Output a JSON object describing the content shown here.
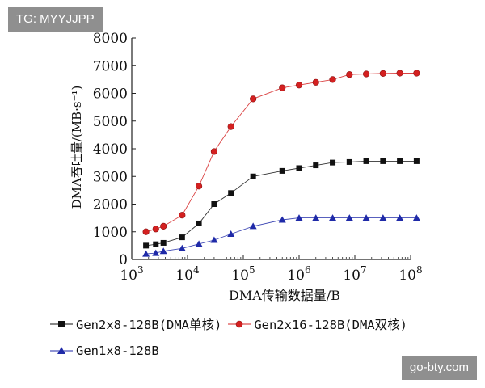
{
  "watermarks": {
    "top": "TG: MYYJJPP",
    "bottom": "go-bty.com"
  },
  "chart_data": {
    "type": "line",
    "title": "",
    "xlabel": "DMA传输数据量/B",
    "ylabel": "DMA吞吐量/(MB·s⁻¹)",
    "x_scale": "log",
    "xlim": [
      1000,
      100000000
    ],
    "ylim": [
      0,
      8000
    ],
    "x_ticks": [
      {
        "value": 1000,
        "base": "10",
        "exp": "3"
      },
      {
        "value": 10000,
        "base": "10",
        "exp": "4"
      },
      {
        "value": 100000,
        "base": "10",
        "exp": "5"
      },
      {
        "value": 1000000,
        "base": "10",
        "exp": "6"
      },
      {
        "value": 10000000,
        "base": "10",
        "exp": "7"
      },
      {
        "value": 100000000,
        "base": "10",
        "exp": "8"
      }
    ],
    "y_ticks": [
      0,
      1000,
      2000,
      3000,
      4000,
      5000,
      6000,
      7000,
      8000
    ],
    "x": [
      1800,
      2700,
      3700,
      8000,
      16000,
      30000,
      60000,
      150000,
      500000,
      1000000,
      2000000,
      4000000,
      8000000,
      16000000,
      32000000,
      64000000,
      128000000
    ],
    "series": [
      {
        "name": "Gen2x8-128B(DMA单核)",
        "color": "#111111",
        "marker": "square",
        "values": [
          500,
          550,
          600,
          800,
          1300,
          2000,
          2400,
          3000,
          3200,
          3300,
          3400,
          3500,
          3520,
          3550,
          3550,
          3550,
          3550
        ]
      },
      {
        "name": "Gen2x16-128B(DMA双核)",
        "color": "#d42020",
        "marker": "circle",
        "values": [
          1000,
          1100,
          1200,
          1600,
          2650,
          3900,
          4800,
          5800,
          6200,
          6300,
          6400,
          6500,
          6680,
          6700,
          6720,
          6730,
          6730
        ]
      },
      {
        "name": "Gen1x8-128B",
        "color": "#1f2aa8",
        "marker": "triangle",
        "values": [
          200,
          230,
          300,
          400,
          560,
          700,
          920,
          1200,
          1430,
          1500,
          1500,
          1500,
          1500,
          1500,
          1500,
          1500,
          1500
        ]
      }
    ],
    "legend_position": "bottom"
  }
}
